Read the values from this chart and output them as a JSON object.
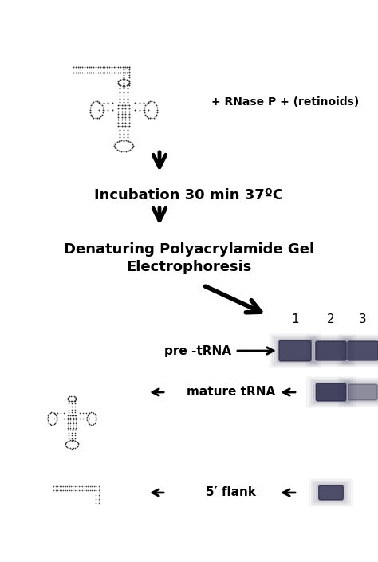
{
  "bg_color": "#ffffff",
  "text_color": "#000000",
  "step1_text": "+ RNase P + (retinoids)",
  "step2_text": "Incubation 30 min 37ºC",
  "step3_line1": "Denaturing Polyacrylamide Gel",
  "step3_line2": "Electrophoresis",
  "label_pre_trna": "pre -tRNA",
  "label_mature_trna": "mature tRNA",
  "label_5flank": "5′ flank",
  "lane_labels": [
    "1",
    "2",
    "3"
  ],
  "fig_width": 4.74,
  "fig_height": 7.05,
  "dpi": 100
}
